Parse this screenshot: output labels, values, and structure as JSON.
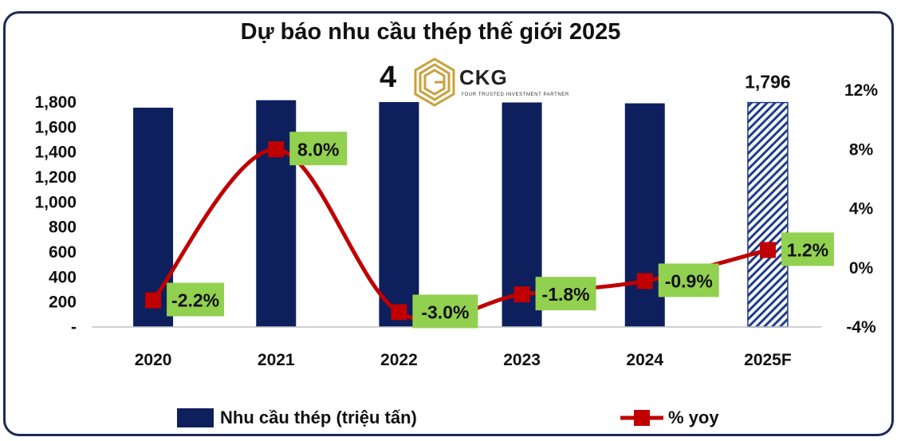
{
  "chart_data": {
    "type": "bar+line",
    "title": "Dự báo nhu cầu thép thế giới 2025",
    "categories": [
      "2020",
      "2021",
      "2022",
      "2023",
      "2024",
      "2025F"
    ],
    "series": [
      {
        "name": "Nhu cầu thép (triệu tấn)",
        "type": "bar",
        "axis": "left",
        "color": "#0d1f5c",
        "values": [
          1755,
          1815,
          1800,
          1797,
          1790,
          1796
        ],
        "hatched": [
          false,
          false,
          false,
          false,
          false,
          true
        ]
      },
      {
        "name": "% yoy",
        "type": "line",
        "axis": "right",
        "color": "#c00000",
        "values": [
          -2.2,
          8.0,
          -3.0,
          -1.8,
          -0.9,
          1.2
        ]
      }
    ],
    "bar_data_label": {
      "index": 5,
      "text": "1,796"
    },
    "line_data_labels": [
      "-2.2%",
      "8.0%",
      "-3.0%",
      "-1.8%",
      "-0.9%",
      "1.2%"
    ],
    "y_left": {
      "ticks": [
        "-",
        "200",
        "400",
        "600",
        "800",
        "1,000",
        "1,200",
        "1,400",
        "1,600",
        "1,800"
      ],
      "ylim": [
        0,
        1800
      ]
    },
    "y_right": {
      "ticks": [
        "-4%",
        "0%",
        "4%",
        "8%",
        "12%"
      ],
      "ylim": [
        -4,
        12
      ]
    },
    "legend_position": "bottom",
    "label_bg_color": "#92d050"
  },
  "logo": {
    "number": "4",
    "name": "CKG",
    "tagline": "YOUR TRUSTED INVESTMENT PARTNER"
  }
}
